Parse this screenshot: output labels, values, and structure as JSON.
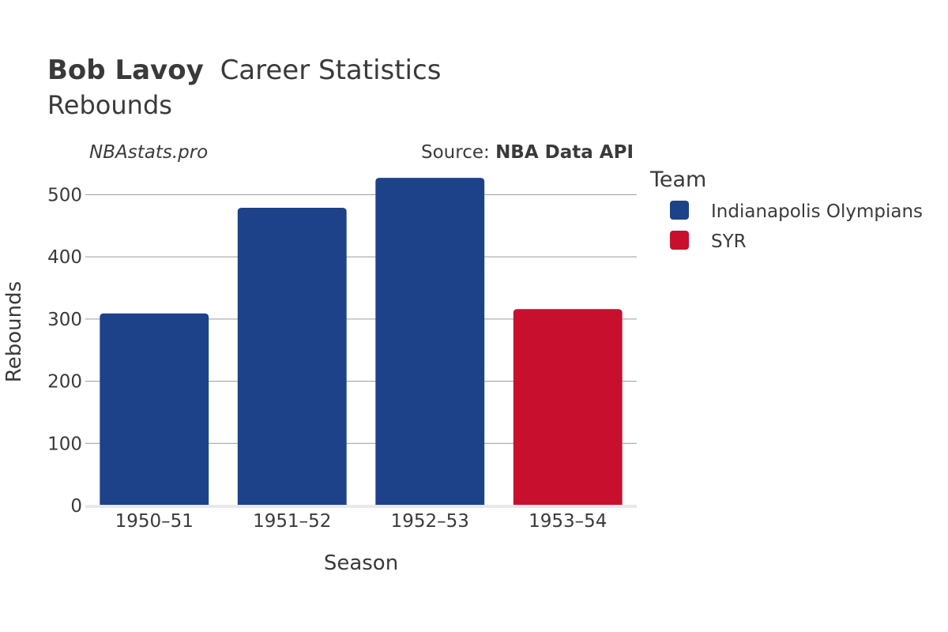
{
  "chart_data": {
    "type": "bar",
    "title": {
      "player": "Bob Lavoy",
      "rest": "Career Statistics",
      "subtitle": "Rebounds"
    },
    "watermark": "NBAstats.pro",
    "source": {
      "prefix": "Source: ",
      "name": "NBA Data API"
    },
    "xlabel": "Season",
    "ylabel": "Rebounds",
    "ylim": [
      0,
      545
    ],
    "yticks": [
      0,
      100,
      200,
      300,
      400,
      500
    ],
    "grid": true,
    "categories": [
      "1950–51",
      "1951–52",
      "1952–53",
      "1953–54"
    ],
    "bars": [
      {
        "season": "1950–51",
        "team": "Indianapolis Olympians",
        "value": 309
      },
      {
        "season": "1951–52",
        "team": "Indianapolis Olympians",
        "value": 479
      },
      {
        "season": "1952–53",
        "team": "Indianapolis Olympians",
        "value": 527
      },
      {
        "season": "1953–54",
        "team": "SYR",
        "value": 316
      }
    ],
    "legend": {
      "title": "Team",
      "placement": "right",
      "entries": [
        {
          "name": "Indianapolis Olympians",
          "color": "#1d4289"
        },
        {
          "name": "SYR",
          "color": "#c8102e"
        }
      ]
    }
  }
}
